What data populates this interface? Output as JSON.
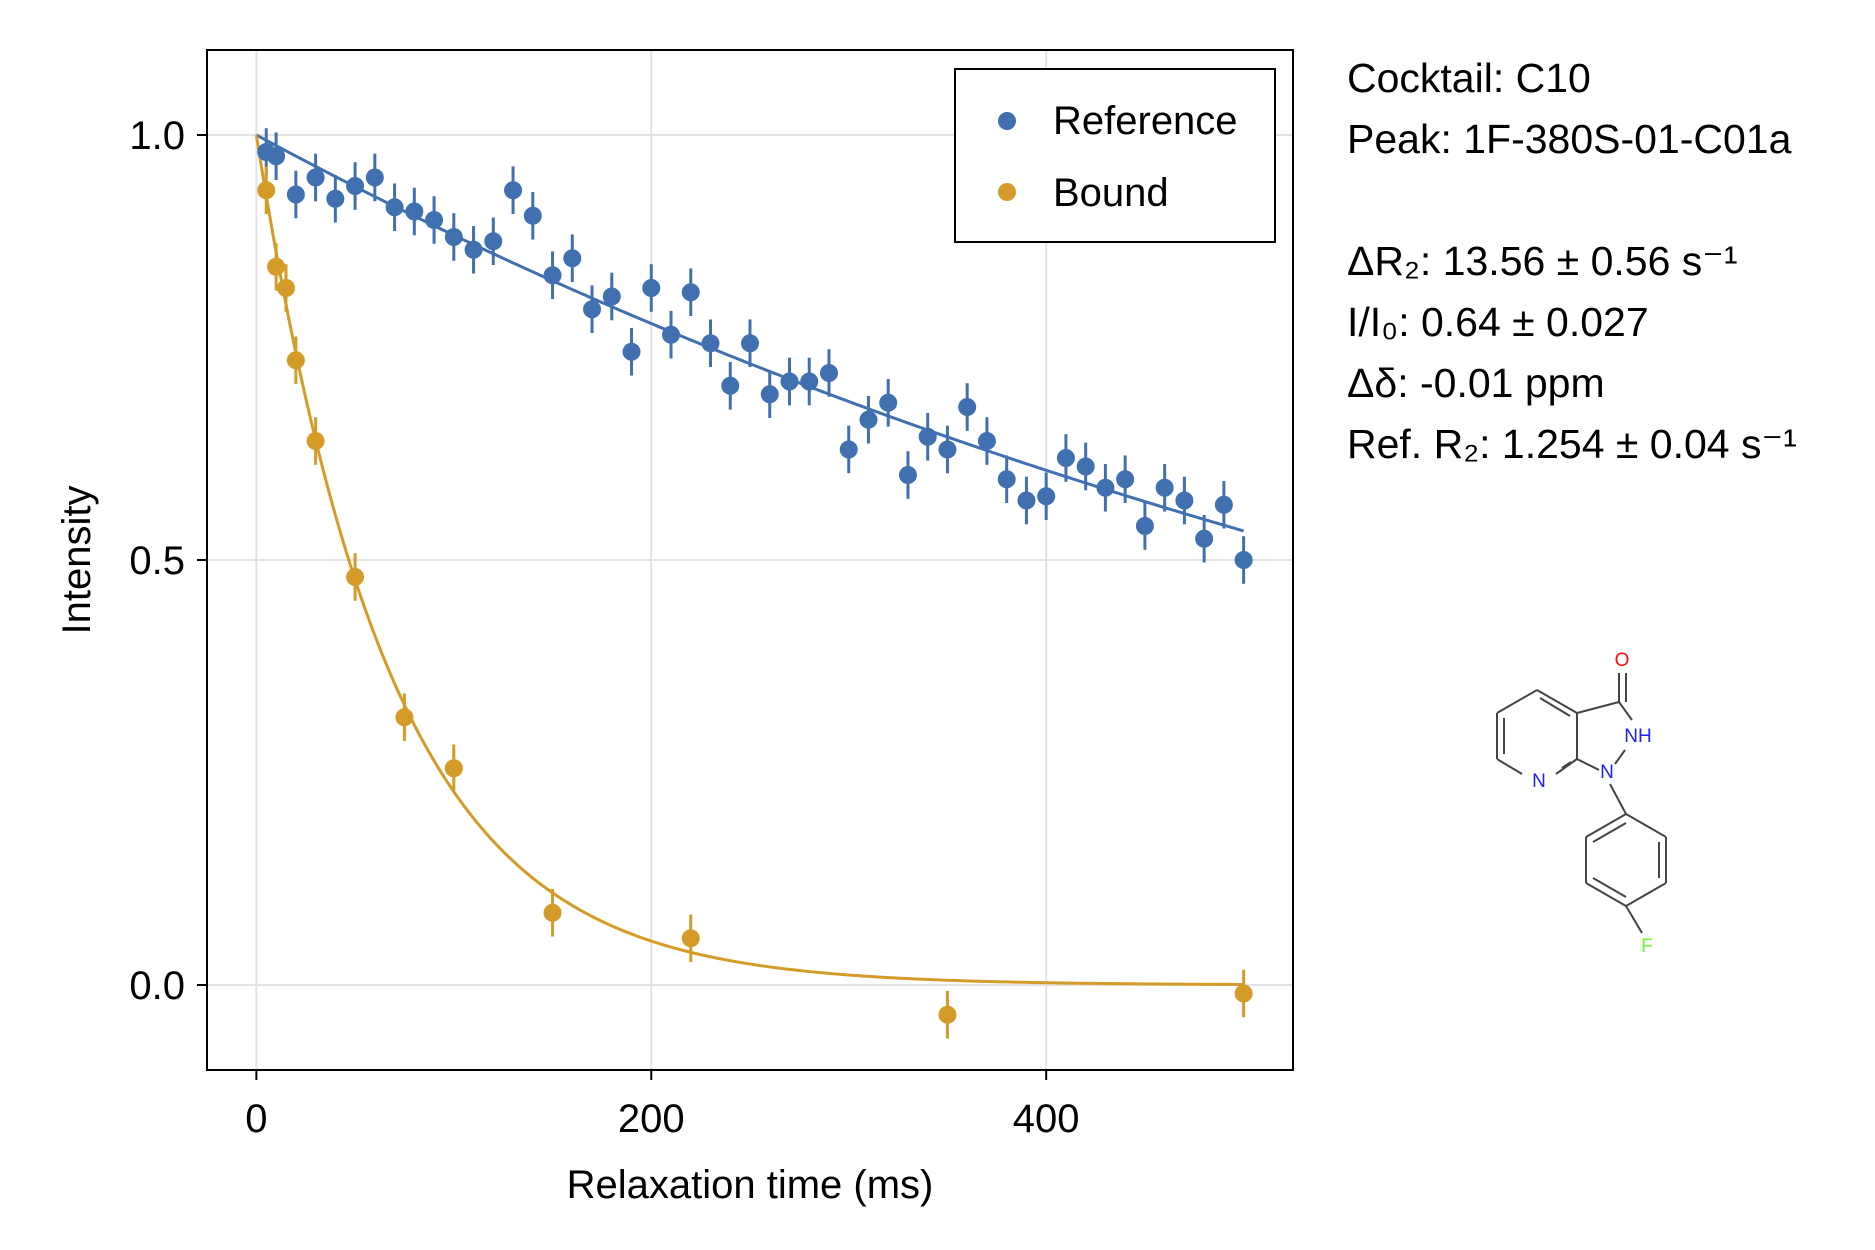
{
  "chart_data": {
    "type": "scatter",
    "xlabel": "Relaxation time (ms)",
    "ylabel": "Intensity",
    "xlim": [
      -25,
      525
    ],
    "ylim": [
      -0.1,
      1.1
    ],
    "x_ticks": [
      0,
      200,
      400
    ],
    "x_tick_labels": [
      "0",
      "200",
      "400"
    ],
    "y_ticks": [
      0.0,
      0.5,
      1.0
    ],
    "y_tick_labels": [
      "0.0",
      "0.5",
      "1.0"
    ],
    "grid": true,
    "legend_position": "top-right",
    "series": [
      {
        "name": "Reference",
        "color": "#4170b0",
        "x": [
          5,
          10,
          20,
          30,
          40,
          50,
          60,
          70,
          80,
          90,
          100,
          110,
          120,
          130,
          140,
          150,
          160,
          170,
          180,
          190,
          200,
          210,
          220,
          230,
          240,
          250,
          260,
          270,
          280,
          290,
          300,
          310,
          320,
          330,
          340,
          350,
          360,
          370,
          380,
          390,
          400,
          410,
          420,
          430,
          440,
          450,
          460,
          470,
          480,
          490,
          500
        ],
        "y": [
          0.98,
          0.975,
          0.93,
          0.95,
          0.925,
          0.94,
          0.95,
          0.915,
          0.91,
          0.9,
          0.88,
          0.865,
          0.875,
          0.935,
          0.905,
          0.835,
          0.855,
          0.795,
          0.81,
          0.745,
          0.82,
          0.765,
          0.815,
          0.755,
          0.705,
          0.755,
          0.695,
          0.71,
          0.71,
          0.72,
          0.63,
          0.665,
          0.685,
          0.6,
          0.645,
          0.63,
          0.68,
          0.64,
          0.595,
          0.57,
          0.575,
          0.62,
          0.61,
          0.585,
          0.595,
          0.54,
          0.585,
          0.57,
          0.525,
          0.565,
          0.5
        ],
        "error": 0.028,
        "fit": {
          "label": "exponential fit",
          "I0": 1.0,
          "R2_per_s": 1.254
        }
      },
      {
        "name": "Bound",
        "color": "#d49b29",
        "x": [
          5,
          10,
          15,
          20,
          30,
          50,
          75,
          100,
          150,
          220,
          350,
          500
        ],
        "y": [
          0.935,
          0.845,
          0.82,
          0.735,
          0.64,
          0.48,
          0.315,
          0.255,
          0.085,
          0.055,
          -0.035,
          -0.01
        ],
        "error": 0.028,
        "fit": {
          "label": "exponential fit",
          "I0": 1.0,
          "R2_per_s": 14.81
        }
      }
    ]
  },
  "info": {
    "cocktail": "Cocktail: C10",
    "peak": "Peak: 1F-380S-01-C01a",
    "delta_r2": "ΔR₂: 13.56 ± 0.56 s⁻¹",
    "i_ratio": "I/I₀: 0.64 ± 0.027",
    "delta_shift": "Δδ: -0.01 ppm",
    "ref_r2": "Ref. R₂: 1.254 ± 0.04 s⁻¹"
  },
  "molecule": {
    "atom_labels": {
      "oxygen": "O",
      "nh": "NH",
      "n1": "N",
      "pyridine_n": "N",
      "fluorine": "F"
    },
    "colors": {
      "bond": "#444444",
      "oxygen": "#ff0d0d",
      "nitrogen": "#2020ff",
      "fluorine": "#66ff33"
    }
  }
}
